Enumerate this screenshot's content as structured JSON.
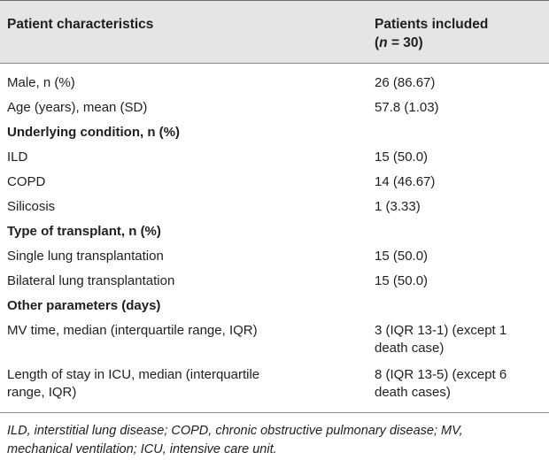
{
  "header": {
    "col1": "Patient characteristics",
    "col2_line1": "Patients included",
    "col2_n_open": "(",
    "col2_n_italic": "n",
    "col2_n_rest": " = 30)"
  },
  "rows": [
    {
      "label": "Male, n (%)",
      "value": "26 (86.67)",
      "section": false
    },
    {
      "label": "Age (years), mean (SD)",
      "value": "57.8 (1.03)",
      "section": false
    },
    {
      "label": "Underlying condition, n (%)",
      "value": "",
      "section": true
    },
    {
      "label": "ILD",
      "value": "15 (50.0)",
      "section": false
    },
    {
      "label": "COPD",
      "value": "14 (46.67)",
      "section": false
    },
    {
      "label": "Silicosis",
      "value": "1 (3.33)",
      "section": false
    },
    {
      "label": "Type of transplant, n (%)",
      "value": "",
      "section": true
    },
    {
      "label": "Single lung transplantation",
      "value": "15 (50.0)",
      "section": false
    },
    {
      "label": "Bilateral lung transplantation",
      "value": "15 (50.0)",
      "section": false
    },
    {
      "label": "Other parameters (days)",
      "value": "",
      "section": true
    },
    {
      "label": "MV time, median (interquartile range, IQR)",
      "value_line1": "3 (IQR 13-1) (except 1",
      "value_line2": "death case)",
      "section": false
    },
    {
      "label_line1": "Length of stay in ICU, median (interquartile",
      "label_line2": "range, IQR)",
      "value_line1": "8 (IQR 13-5) (except 6",
      "value_line2": "death cases)",
      "section": false
    }
  ],
  "footnote": {
    "line1": "ILD, interstitial lung disease; COPD, chronic obstructive pulmonary disease; MV,",
    "line2": "mechanical ventilation; ICU, intensive care unit."
  }
}
